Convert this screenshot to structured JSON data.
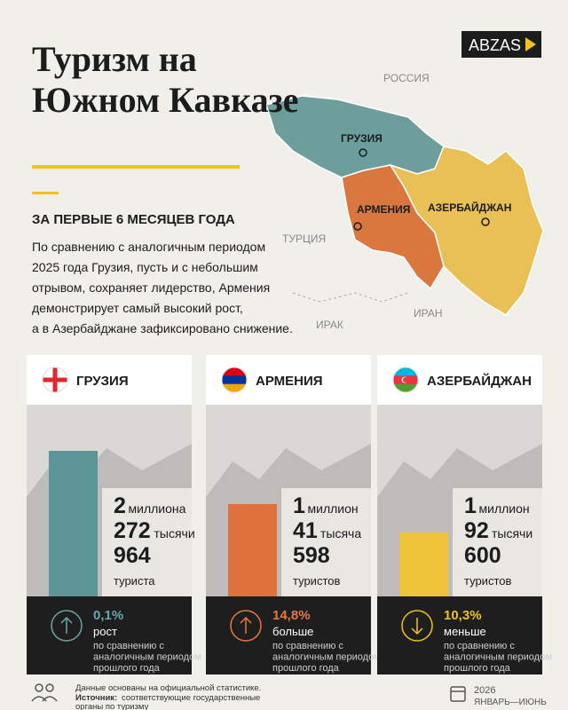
{
  "header": {
    "title": [
      "Туризм на",
      "Южном Кавказе"
    ],
    "logo": "ABZAS"
  },
  "map": {
    "labels": [
      "РОССИЯ",
      "ГРУЗИЯ",
      "АРМЕНИЯ",
      "АЗЕРБАЙДЖАН",
      "ТУРЦИЯ",
      "ИРАК",
      "ИРАН"
    ]
  },
  "intro": {
    "heading": "ЗА ПЕРВЫЕ 6 МЕСЯЦЕВ ГОДА",
    "lines": [
      "По сравнению с аналогичным периодом",
      "2025 года Грузия, пусть и с небольшим",
      "отрывом, сохраняет лидерство, Армения",
      "демонстрирует самый высокий рост,",
      "а в Азербайджане зафиксировано снижение."
    ]
  },
  "cards": [
    {
      "name": "ГРУЗИЯ",
      "count": [
        [
          "2",
          "миллиона"
        ],
        [
          "272",
          "тысячи"
        ],
        [
          "964"
        ]
      ],
      "unit": "туриста",
      "change": "0,1%",
      "direction": "рост",
      "note": [
        "по сравнению с",
        "аналогичным периодом",
        "прошлого года"
      ]
    },
    {
      "name": "АРМЕНИЯ",
      "count": [
        [
          "1",
          "миллион"
        ],
        [
          "41",
          "тысяча"
        ],
        [
          "598"
        ]
      ],
      "unit": "туристов",
      "change": "14,8%",
      "direction": "больше",
      "note": [
        "по сравнению с",
        "аналогичным периодом",
        "прошлого года"
      ]
    },
    {
      "name": "АЗЕРБАЙДЖАН",
      "count": [
        [
          "1",
          "миллион"
        ],
        [
          "92",
          "тысячи"
        ],
        [
          "600"
        ]
      ],
      "unit": "туристов",
      "change": "10,3%",
      "direction": "меньше",
      "note": [
        "по сравнению с",
        "аналогичным периодом",
        "прошлого года"
      ]
    }
  ],
  "footer": {
    "note": "Данные основаны на официальной статистике.",
    "source_label": "Источник:",
    "source": "соответствующие государственные",
    "source_cont": "органы по туризму",
    "year": "2026",
    "period": "ЯНВАРЬ—ИЮНЬ"
  }
}
